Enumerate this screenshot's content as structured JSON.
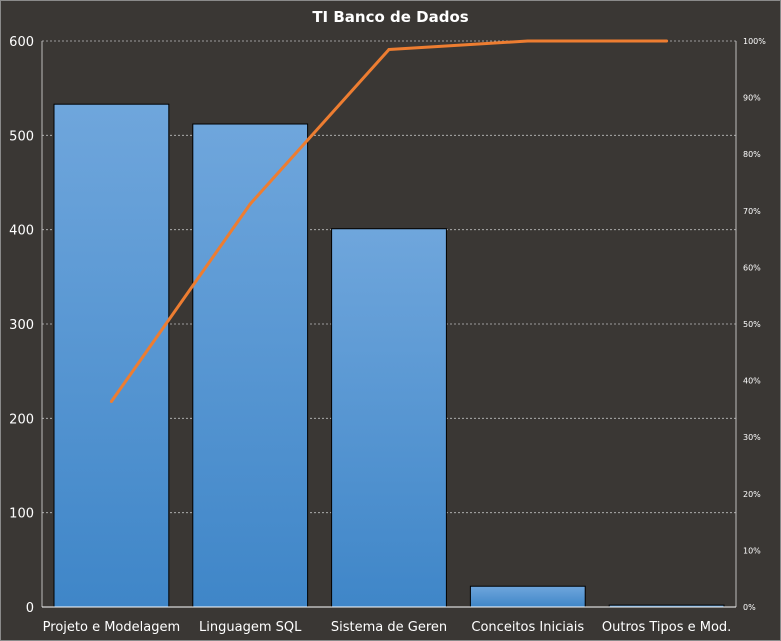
{
  "chart_data": {
    "type": "bar",
    "title": "TI Banco de Dados",
    "categories": [
      "Projeto e Modelagem",
      "Linguagem SQL",
      "Sistema de Geren",
      "Conceitos Iniciais",
      "Outros Tipos e Mod."
    ],
    "series": [
      {
        "type": "bar",
        "values": [
          533,
          512,
          401,
          22,
          2
        ],
        "color": "#5b9bd5"
      },
      {
        "type": "line",
        "axis": "right",
        "values": [
          36.3,
          71.2,
          98.5,
          100.0,
          100.0
        ],
        "color": "#ed7d31"
      }
    ],
    "ylim": [
      0,
      600
    ],
    "yticks": [
      "0",
      "100",
      "200",
      "300",
      "400",
      "500",
      "600"
    ],
    "y2lim": [
      0,
      100
    ],
    "y2ticks": [
      "0%",
      "10%",
      "20%",
      "30%",
      "40%",
      "50%",
      "60%",
      "70%",
      "80%",
      "90%",
      "100%"
    ],
    "grid": true,
    "legend": "none"
  }
}
